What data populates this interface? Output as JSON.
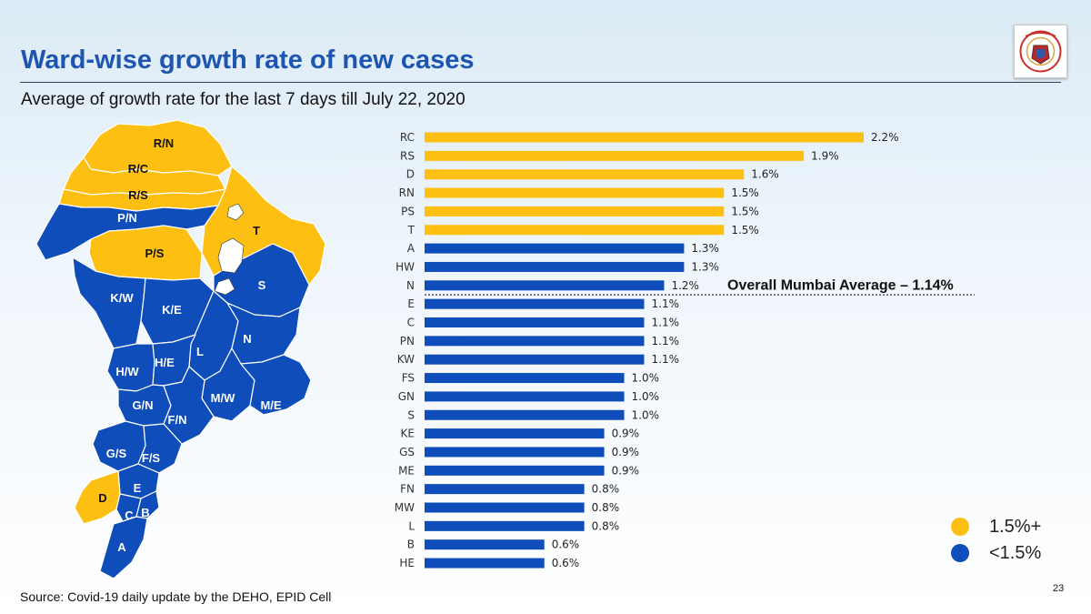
{
  "header": {
    "title": "Ward-wise growth rate of new cases",
    "subtitle": "Average of growth rate for the last 7 days till July 22, 2020"
  },
  "footer": {
    "source": "Source: Covid-19 daily update by the DEHO, EPID Cell",
    "page_number": "23"
  },
  "legend": {
    "items": [
      {
        "label": "1.5%+",
        "color": "#fdbf11"
      },
      {
        "label": "<1.5%",
        "color": "#0e4dba"
      }
    ]
  },
  "map": {
    "ward_labels": [
      "R/N",
      "R/C",
      "R/S",
      "P/N",
      "P/S",
      "T",
      "S",
      "K/W",
      "K/E",
      "L",
      "N",
      "H/W",
      "H/E",
      "G/N",
      "M/W",
      "M/E",
      "F/N",
      "G/S",
      "F/S",
      "E",
      "D",
      "C",
      "B",
      "A"
    ]
  },
  "chart_data": {
    "type": "bar",
    "orientation": "horizontal",
    "categories": [
      "RC",
      "RS",
      "D",
      "RN",
      "PS",
      "T",
      "A",
      "HW",
      "N",
      "E",
      "C",
      "PN",
      "KW",
      "FS",
      "GN",
      "S",
      "KE",
      "GS",
      "ME",
      "FN",
      "MW",
      "L",
      "B",
      "HE"
    ],
    "values": [
      2.2,
      1.9,
      1.6,
      1.5,
      1.5,
      1.5,
      1.3,
      1.3,
      1.2,
      1.1,
      1.1,
      1.1,
      1.1,
      1.0,
      1.0,
      1.0,
      0.9,
      0.9,
      0.9,
      0.8,
      0.8,
      0.8,
      0.6,
      0.6
    ],
    "value_labels": [
      "2.2%",
      "1.9%",
      "1.6%",
      "1.5%",
      "1.5%",
      "1.5%",
      "1.3%",
      "1.3%",
      "1.2%",
      "1.1%",
      "1.1%",
      "1.1%",
      "1.1%",
      "1.0%",
      "1.0%",
      "1.0%",
      "0.9%",
      "0.9%",
      "0.9%",
      "0.8%",
      "0.8%",
      "0.8%",
      "0.6%",
      "0.6%"
    ],
    "threshold": 1.5,
    "colors": {
      "high": "#fdbf11",
      "low": "#0e4dba"
    },
    "xlim": [
      0,
      2.2
    ],
    "reference_line": {
      "value": 1.14,
      "label": "Overall Mumbai Average – 1.14%"
    }
  }
}
